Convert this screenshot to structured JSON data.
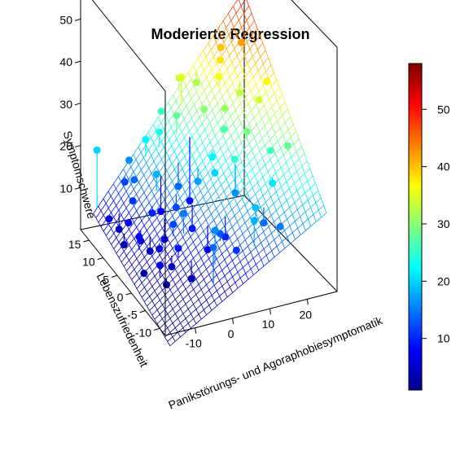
{
  "chart_data": {
    "type": "scatter3d",
    "title": "Moderierte Regression",
    "xlabel": "Panikstörungs- und Agoraphobiesymptomatik",
    "ylabel": "Lebenszufriedenheit",
    "zlabel": "Symptomschwere",
    "xlim": [
      -18,
      28
    ],
    "ylim": [
      -12,
      18
    ],
    "zlim": [
      0,
      58
    ],
    "x_ticks": [
      -10,
      0,
      10,
      20
    ],
    "y_ticks": [
      -10,
      -5,
      0,
      5,
      10,
      15
    ],
    "z_ticks": [
      10,
      20,
      30,
      40,
      50
    ],
    "colorbar": {
      "range": [
        1,
        58
      ],
      "ticks": [
        10,
        20,
        30,
        40,
        50
      ],
      "palette": "jet"
    },
    "surface": {
      "type": "fitted-regression-plane-with-interaction",
      "color_by": "z"
    },
    "points": [
      {
        "x": -15,
        "y": 16,
        "z": 20
      },
      {
        "x": -14,
        "y": 13,
        "z": 6
      },
      {
        "x": -12,
        "y": 12,
        "z": 4
      },
      {
        "x": -13,
        "y": 9,
        "z": 3
      },
      {
        "x": -11,
        "y": 10,
        "z": 7
      },
      {
        "x": -10,
        "y": 7,
        "z": 5
      },
      {
        "x": -9,
        "y": 5,
        "z": 4
      },
      {
        "x": -12,
        "y": 5,
        "z": 8
      },
      {
        "x": -8,
        "y": 3,
        "z": 6
      },
      {
        "x": -7,
        "y": 0,
        "z": 4
      },
      {
        "x": -6,
        "y": -1,
        "z": 9
      },
      {
        "x": -5,
        "y": 2,
        "z": 12
      },
      {
        "x": -9,
        "y": 11,
        "z": 11
      },
      {
        "x": -7,
        "y": 13,
        "z": 14
      },
      {
        "x": -6,
        "y": 8,
        "z": 10
      },
      {
        "x": -5,
        "y": 5,
        "z": 6
      },
      {
        "x": -4,
        "y": -3,
        "z": 3
      },
      {
        "x": -3,
        "y": 1,
        "z": 15
      },
      {
        "x": -2,
        "y": 10,
        "z": 8
      },
      {
        "x": -3,
        "y": 14,
        "z": 22
      },
      {
        "x": -1,
        "y": 6,
        "z": 12
      },
      {
        "x": 0,
        "y": -6,
        "z": 16
      },
      {
        "x": 1,
        "y": 3,
        "z": 9
      },
      {
        "x": 2,
        "y": 9,
        "z": 14
      },
      {
        "x": 3,
        "y": -4,
        "z": 13
      },
      {
        "x": 4,
        "y": 12,
        "z": 28
      },
      {
        "x": 5,
        "y": 6,
        "z": 17
      },
      {
        "x": 6,
        "y": -2,
        "z": 10
      },
      {
        "x": 7,
        "y": 14,
        "z": 35
      },
      {
        "x": 8,
        "y": 4,
        "z": 20
      },
      {
        "x": 9,
        "y": -8,
        "z": 18
      },
      {
        "x": 10,
        "y": 10,
        "z": 30
      },
      {
        "x": 11,
        "y": 1,
        "z": 25
      },
      {
        "x": 12,
        "y": 15,
        "z": 32
      },
      {
        "x": 13,
        "y": 7,
        "z": 27
      },
      {
        "x": 14,
        "y": -5,
        "z": 14
      },
      {
        "x": 15,
        "y": 11,
        "z": 36
      },
      {
        "x": 16,
        "y": 3,
        "z": 29
      },
      {
        "x": 17,
        "y": 13,
        "z": 38
      },
      {
        "x": 18,
        "y": -3,
        "z": 21
      },
      {
        "x": 19,
        "y": 9,
        "z": 33
      },
      {
        "x": 20,
        "y": 0,
        "z": 26
      },
      {
        "x": 22,
        "y": 12,
        "z": 42
      },
      {
        "x": 24,
        "y": 6,
        "z": 37
      },
      {
        "x": 26,
        "y": 15,
        "z": 55
      },
      {
        "x": -10,
        "y": -2,
        "z": 2
      },
      {
        "x": -8,
        "y": 15,
        "z": 12
      },
      {
        "x": -4,
        "y": 9,
        "z": 18
      },
      {
        "x": 0,
        "y": 13,
        "z": 24
      },
      {
        "x": 2,
        "y": -1,
        "z": 7
      },
      {
        "x": 5,
        "y": -7,
        "z": 11
      },
      {
        "x": 8,
        "y": 16,
        "z": 33
      },
      {
        "x": 11,
        "y": -6,
        "z": 19
      },
      {
        "x": 14,
        "y": 8,
        "z": 31
      },
      {
        "x": 16,
        "y": -8,
        "z": 15
      },
      {
        "x": 21,
        "y": 5,
        "z": 34
      },
      {
        "x": 23,
        "y": -2,
        "z": 28
      },
      {
        "x": -2,
        "y": -8,
        "z": 14
      },
      {
        "x": -13,
        "y": 2,
        "z": 2
      },
      {
        "x": -11,
        "y": -1,
        "z": 6
      },
      {
        "x": 6,
        "y": 10,
        "z": 9
      },
      {
        "x": 9,
        "y": 6,
        "z": 22
      },
      {
        "x": 12,
        "y": 2,
        "z": 16
      },
      {
        "x": 18,
        "y": 14,
        "z": 40
      },
      {
        "x": -6,
        "y": 16,
        "z": 16
      },
      {
        "x": 3,
        "y": 16,
        "z": 26
      }
    ]
  }
}
